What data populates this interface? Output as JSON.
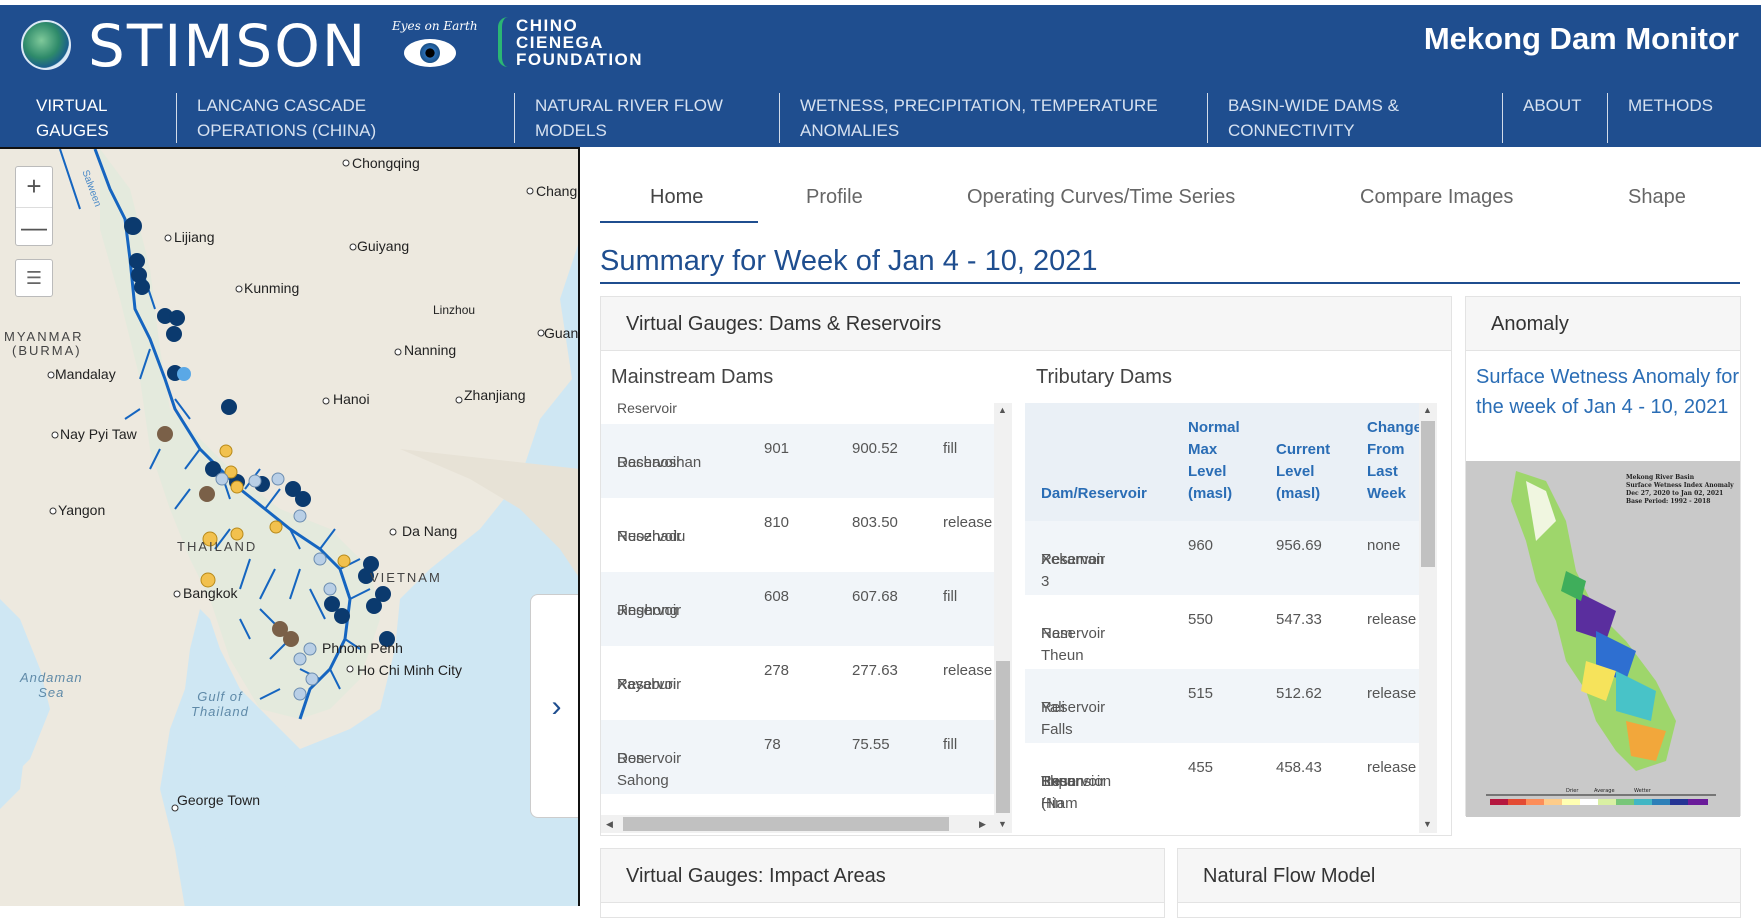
{
  "header": {
    "org_logo_text": "STIMSON",
    "eyes_logo_text": "Eyes on Earth",
    "chino_logo_lines": [
      "CHINO",
      "CIENEGA",
      "FOUNDATION"
    ],
    "site_title": "Mekong Dam Monitor"
  },
  "nav": {
    "items": [
      {
        "line1": "VIRTUAL",
        "line2": "GAUGES"
      },
      {
        "line1": "LANCANG CASCADE",
        "line2": "OPERATIONS (CHINA)"
      },
      {
        "line1": "NATURAL RIVER FLOW",
        "line2": "MODELS"
      },
      {
        "line1": "WETNESS, PRECIPITATION, TEMPERATURE",
        "line2": "ANOMALIES"
      },
      {
        "line1": "BASIN-WIDE DAMS &",
        "line2": "CONNECTIVITY"
      },
      {
        "line1": "ABOUT",
        "line2": ""
      },
      {
        "line1": "METHODS",
        "line2": ""
      }
    ]
  },
  "map": {
    "zoom_in": "+",
    "zoom_out": "—",
    "layers_icon": "list-icon",
    "collapse_arrow": "›",
    "labels": {
      "chongqing": "Chongqing",
      "chang": "Chang",
      "lijiang": "Lijiang",
      "guiyang": "Guiyang",
      "kunming": "Kunming",
      "linzhou": "Linzhou",
      "myanmar1": "MYANMAR",
      "myanmar2": "(BURMA)",
      "nanning": "Nanning",
      "guan": "Guan",
      "mandalay": "Mandalay",
      "hanoi": "Hanoi",
      "zhanjiang": "Zhanjiang",
      "naypyitaw": "Nay Pyi Taw",
      "yangon": "Yangon",
      "danang": "Da Nang",
      "thailand": "THAILAND",
      "vietnam": "VIETNAM",
      "bangkok": "Bangkok",
      "phnompenh": "Phnom Penh",
      "hochiminh": "Ho Chi Minh City",
      "andaman1": "Andaman",
      "andaman2": "Sea",
      "gulf1": "Gulf of",
      "gulf2": "Thailand",
      "georgetown": "George Town",
      "salween": "Salween"
    }
  },
  "tabs": [
    "Home",
    "Profile",
    "Operating Curves/Time Series",
    "Compare Images",
    "Shape"
  ],
  "summary_title": "Summary for Week of Jan 4 - 10, 2021",
  "gauges_card": {
    "title": "Virtual Gauges: Dams & Reservoirs",
    "mainstream_title": "Mainstream Dams",
    "tributary_title": "Tributary Dams",
    "mainstream_partial_row": "Reservoir",
    "mainstream_rows": [
      {
        "name1": "Dachaoshan",
        "name2": "Reservoir",
        "max": "901",
        "current": "900.52",
        "change": "fill"
      },
      {
        "name1": "Nuozhadu",
        "name2": "Reservoir",
        "max": "810",
        "current": "803.50",
        "change": "release"
      },
      {
        "name1": "Jinghong",
        "name2": "Reservoir",
        "max": "608",
        "current": "607.68",
        "change": "fill"
      },
      {
        "name1": "Xayaburi",
        "name2": "Reservoir",
        "max": "278",
        "current": "277.63",
        "change": "release"
      },
      {
        "name1": "Don Sahong",
        "name2": "Reservoir",
        "max": "78",
        "current": "75.55",
        "change": "fill"
      }
    ],
    "tributary_headers": {
      "name": "Dam/Reservoir",
      "max": [
        "Normal",
        "Max",
        "Level",
        "(masl)"
      ],
      "current": [
        "Current",
        "Level",
        "(masl)"
      ],
      "change": [
        "Change",
        "From",
        "Last",
        "Week"
      ]
    },
    "tributary_rows": [
      {
        "name1": "Xekaman 3",
        "name2": "Reservoir",
        "name3": "",
        "name4": "",
        "max": "960",
        "current": "956.69",
        "change": "none"
      },
      {
        "name1": "Nam Theun 2",
        "name2": "Reservoir",
        "name3": "",
        "name4": "",
        "max": "550",
        "current": "547.33",
        "change": "release"
      },
      {
        "name1": "Yali Falls",
        "name2": "Reservoir",
        "name3": "",
        "name4": "",
        "max": "515",
        "current": "512.62",
        "change": "release"
      },
      {
        "name1": "Theun-Hin",
        "name2": "Boun",
        "name3": "Expansion",
        "name4": "Reservoir (Nam",
        "max": "455",
        "current": "458.43",
        "change": "release"
      }
    ]
  },
  "anomaly_card": {
    "title": "Anomaly",
    "link_text": "Surface Wetness Anomaly for the week of Jan 4 - 10, 2021",
    "img_title_lines": [
      "Mekong River Basin",
      "Surface Wetness Index Anomaly",
      "Dec 27, 2020 to Jan 02, 2021",
      "Base Period: 1992 - 2018"
    ],
    "legend_labels": [
      "Drier",
      "Average",
      "Wetter"
    ]
  },
  "bottom_cards": {
    "impact_title": "Virtual Gauges: Impact Areas",
    "natural_title": "Natural Flow Model"
  },
  "colors": {
    "brand_blue": "#1f4e8f",
    "link_blue": "#2a6db5",
    "river_blue": "#1565c0"
  }
}
